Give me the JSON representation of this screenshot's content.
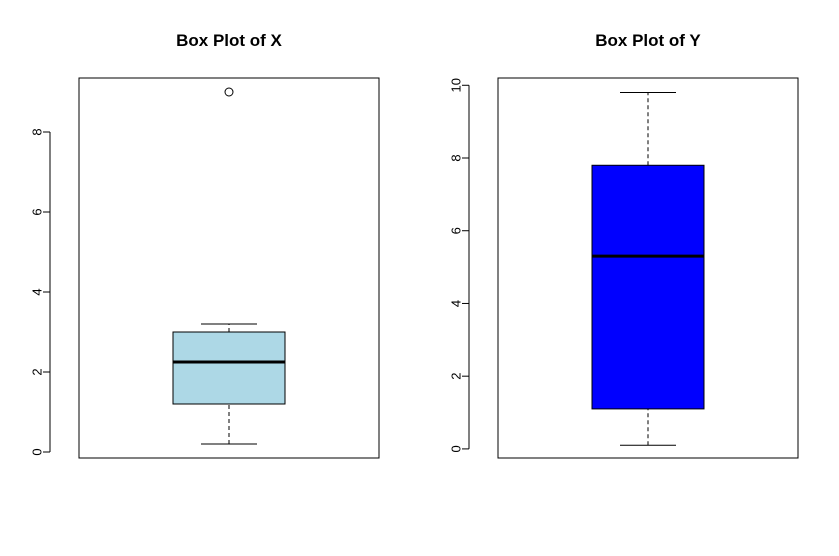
{
  "chart_data": [
    {
      "type": "box",
      "title": "Box Plot of X",
      "xlabel": "",
      "ylabel": "",
      "ylim": [
        -0.15,
        9.35
      ],
      "yticks": [
        0,
        2,
        4,
        6,
        8
      ],
      "grid": false,
      "fill_color": "#add8e6",
      "border_color": "#000000",
      "box": {
        "lower_whisker": 0.2,
        "q1": 1.2,
        "median": 2.25,
        "q3": 3.0,
        "upper_whisker": 3.2,
        "outliers": [
          9.0
        ]
      }
    },
    {
      "type": "box",
      "title": "Box Plot of Y",
      "xlabel": "",
      "ylabel": "",
      "ylim": [
        -0.25,
        10.2
      ],
      "yticks": [
        0,
        2,
        4,
        6,
        8,
        10
      ],
      "grid": false,
      "fill_color": "#0000ff",
      "border_color": "#000000",
      "box": {
        "lower_whisker": 0.1,
        "q1": 1.1,
        "median": 5.3,
        "q3": 7.8,
        "upper_whisker": 9.8,
        "outliers": []
      }
    }
  ]
}
